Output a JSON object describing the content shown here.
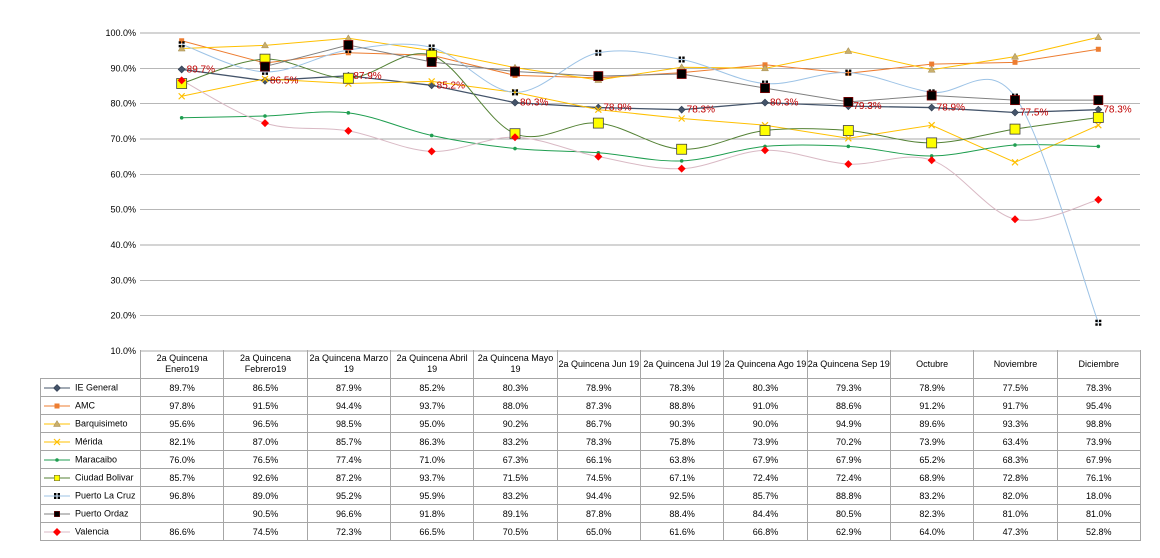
{
  "chart_data": {
    "type": "line",
    "title": "",
    "xlabel": "",
    "ylabel": "",
    "ylim": [
      10,
      100
    ],
    "yticks": [
      "10.0%",
      "20.0%",
      "30.0%",
      "40.0%",
      "50.0%",
      "60.0%",
      "70.0%",
      "80.0%",
      "90.0%",
      "100.0%"
    ],
    "grid": true,
    "legend": "data-table",
    "categories": [
      "2a Quincena Enero19",
      "2a Quincena Febrero19",
      "2a Quincena Marzo 19",
      "2a Quincena Abril 19",
      "2a Quincena Mayo 19",
      "2a Quincena Jun 19",
      "2a Quincena Jul 19",
      "2a Quincena Ago 19",
      "2a Quincena Sep 19",
      "Octubre",
      "Noviembre",
      "Diciembre"
    ],
    "series": [
      {
        "name": "IE General",
        "color": "#44546a",
        "marker": "diamond",
        "smooth": false,
        "labeled": true,
        "values": [
          89.7,
          86.5,
          87.9,
          85.2,
          80.3,
          78.9,
          78.3,
          80.3,
          79.3,
          78.9,
          77.5,
          78.3
        ],
        "labels": [
          "89.7%",
          "86.5%",
          "87.9%",
          "85.2%",
          "80.3%",
          "78.9%",
          "78.3%",
          "80.3%",
          "79.3%",
          "78.9%",
          "77.5%",
          "78.3%"
        ],
        "cells": [
          "89.7%",
          "86.5%",
          "87.9%",
          "85.2%",
          "80.3%",
          "78.9%",
          "78.3%",
          "80.3%",
          "79.3%",
          "78.9%",
          "77.5%",
          "78.3%"
        ]
      },
      {
        "name": "AMC",
        "color": "#ed7d31",
        "marker": "square",
        "smooth": false,
        "values": [
          97.8,
          91.5,
          94.4,
          93.7,
          88.0,
          87.3,
          88.8,
          91.0,
          88.6,
          91.2,
          91.7,
          95.4
        ],
        "cells": [
          "97.8%",
          "91.5%",
          "94.4%",
          "93.7%",
          "88.0%",
          "87.3%",
          "88.8%",
          "91.0%",
          "88.6%",
          "91.2%",
          "91.7%",
          "95.4%"
        ]
      },
      {
        "name": "Barquisimeto",
        "color": "#ffc000",
        "marker": "triangle",
        "smooth": false,
        "values": [
          95.6,
          96.5,
          98.5,
          95.0,
          90.2,
          86.7,
          90.3,
          90.0,
          94.9,
          89.6,
          93.3,
          98.8
        ],
        "cells": [
          "95.6%",
          "96.5%",
          "98.5%",
          "95.0%",
          "90.2%",
          "86.7%",
          "90.3%",
          "90.0%",
          "94.9%",
          "89.6%",
          "93.3%",
          "98.8%"
        ]
      },
      {
        "name": "Mérida",
        "color": "#ffc000",
        "marker": "x",
        "smooth": false,
        "values": [
          82.1,
          87.0,
          85.7,
          86.3,
          83.2,
          78.3,
          75.8,
          73.9,
          70.2,
          73.9,
          63.4,
          73.9
        ],
        "cells": [
          "82.1%",
          "87.0%",
          "85.7%",
          "86.3%",
          "83.2%",
          "78.3%",
          "75.8%",
          "73.9%",
          "70.2%",
          "73.9%",
          "63.4%",
          "73.9%"
        ]
      },
      {
        "name": "Maracaibo",
        "color": "#1f9e50",
        "marker": "dot",
        "smooth": true,
        "values": [
          76.0,
          76.5,
          77.4,
          71.0,
          67.3,
          66.1,
          63.8,
          67.9,
          67.9,
          65.2,
          68.3,
          67.9
        ],
        "cells": [
          "76.0%",
          "76.5%",
          "77.4%",
          "71.0%",
          "67.3%",
          "66.1%",
          "63.8%",
          "67.9%",
          "67.9%",
          "65.2%",
          "68.3%",
          "67.9%"
        ]
      },
      {
        "name": "Ciudad Bolivar",
        "color": "#548235",
        "marker": "yellowsquare",
        "smooth": true,
        "values": [
          85.7,
          92.6,
          87.2,
          93.7,
          71.5,
          74.5,
          67.1,
          72.4,
          72.4,
          68.9,
          72.8,
          76.1
        ],
        "cells": [
          "85.7%",
          "92.6%",
          "87.2%",
          "93.7%",
          "71.5%",
          "74.5%",
          "67.1%",
          "72.4%",
          "72.4%",
          "68.9%",
          "72.8%",
          "76.1%"
        ]
      },
      {
        "name": "Puerto La Cruz",
        "color": "#9dc3e6",
        "marker": "dotsquare",
        "smooth": true,
        "values": [
          96.8,
          89.0,
          95.2,
          95.9,
          83.2,
          94.4,
          92.5,
          85.7,
          88.8,
          83.2,
          82.0,
          18.0
        ],
        "cells": [
          "96.8%",
          "89.0%",
          "95.2%",
          "95.9%",
          "83.2%",
          "94.4%",
          "92.5%",
          "85.7%",
          "88.8%",
          "83.2%",
          "82.0%",
          "18.0%"
        ]
      },
      {
        "name": "Puerto Ordaz",
        "color": "#808080",
        "marker": "blacksquare",
        "smooth": false,
        "values": [
          null,
          90.5,
          96.6,
          91.8,
          89.1,
          87.8,
          88.4,
          84.4,
          80.5,
          82.3,
          81.0,
          81.0
        ],
        "cells": [
          "",
          "90.5%",
          "96.6%",
          "91.8%",
          "89.1%",
          "87.8%",
          "88.4%",
          "84.4%",
          "80.5%",
          "82.3%",
          "81.0%",
          "81.0%"
        ]
      },
      {
        "name": "Valencia",
        "color": "#d9b9c4",
        "marker": "reddiamond",
        "smooth": true,
        "values": [
          86.6,
          74.5,
          72.3,
          66.5,
          70.5,
          65.0,
          61.6,
          66.8,
          62.9,
          64.0,
          47.3,
          52.8
        ],
        "cells": [
          "86.6%",
          "74.5%",
          "72.3%",
          "66.5%",
          "70.5%",
          "65.0%",
          "61.6%",
          "66.8%",
          "62.9%",
          "64.0%",
          "47.3%",
          "52.8%"
        ]
      }
    ]
  }
}
